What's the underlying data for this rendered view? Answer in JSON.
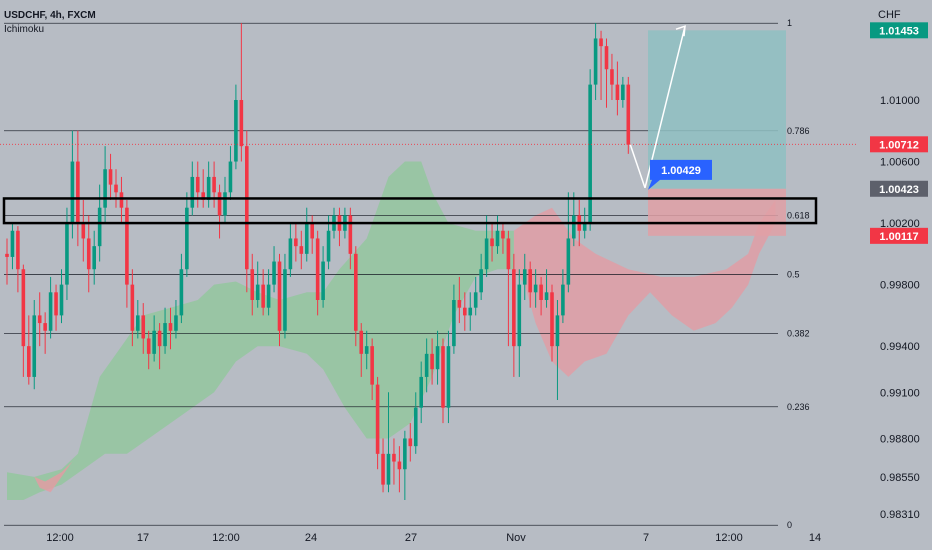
{
  "header": {
    "symbol_line": "USDCHF, 4h, FXCM",
    "indicator": "Ichimoku"
  },
  "colors": {
    "background": "#b7bcc4",
    "bull": "#089981",
    "bear": "#f23645",
    "cloud_bull": "#8fc89a",
    "cloud_bear": "#e59aa2",
    "target_zone": "#8fbfc2",
    "stop_zone": "#e0a0a6",
    "level_line": "#131722",
    "callout": "#2962ff"
  },
  "chart_data": {
    "type": "candlestick",
    "title": "USDCHF, 4h, FXCM",
    "indicator": "Ichimoku",
    "y_axis": {
      "currency": "CHF",
      "ticks": [
        "1.01000",
        "1.00600",
        "1.00200",
        "0.99800",
        "0.99400",
        "0.99100",
        "0.98800",
        "0.98550",
        "0.98310"
      ],
      "range": [
        0.9827,
        1.0165
      ]
    },
    "x_axis": {
      "ticks": [
        "12:00",
        "17",
        "12:00",
        "24",
        "27",
        "Nov",
        "7",
        "12:00",
        "14"
      ]
    },
    "fib_levels": [
      {
        "label": "1",
        "price": 1.01499
      },
      {
        "label": "0.786",
        "price": 1.008
      },
      {
        "label": "0.618",
        "price": 1.0025
      },
      {
        "label": "0.5",
        "price": 0.99866
      },
      {
        "label": "0.382",
        "price": 0.99483
      },
      {
        "label": "0.236",
        "price": 0.99006
      },
      {
        "label": "0",
        "price": 0.98236
      }
    ],
    "price_tags": [
      {
        "value": "1.01453",
        "price": 1.01453,
        "color": "#089981"
      },
      {
        "value": "1.00712",
        "price": 1.00712,
        "color": "#f23645"
      },
      {
        "value": "1.00423",
        "price": 1.00423,
        "color": "#5d606b"
      },
      {
        "value": "1.00117",
        "price": 1.00117,
        "color": "#f23645"
      }
    ],
    "callout": {
      "value": "1.00429",
      "price": 1.00429
    },
    "position": {
      "entry": 1.00423,
      "target": 1.01453,
      "stop": 1.00117
    },
    "support_zone": {
      "top": 1.0036,
      "bottom": 1.002
    },
    "current_price": 1.00712,
    "candles": [
      [
        1.0,
        0.9998,
        1.001,
        0.998
      ],
      [
        0.9998,
        1.0015,
        1.002,
        0.999
      ],
      [
        1.0015,
        0.999,
        1.0018,
        0.9975
      ],
      [
        0.999,
        0.994,
        0.9993,
        0.992
      ],
      [
        0.994,
        0.992,
        0.996,
        0.9915
      ],
      [
        0.992,
        0.996,
        0.997,
        0.9912
      ],
      [
        0.996,
        0.9955,
        0.9975,
        0.994
      ],
      [
        0.9955,
        0.995,
        0.9962,
        0.9935
      ],
      [
        0.995,
        0.9975,
        0.9985,
        0.9945
      ],
      [
        0.9975,
        0.996,
        0.998,
        0.995
      ],
      [
        0.996,
        0.998,
        0.999,
        0.9955
      ],
      [
        0.998,
        1.002,
        1.003,
        0.997
      ],
      [
        1.002,
        1.006,
        1.008,
        1.001
      ],
      [
        1.006,
        1.002,
        1.008,
        1.0005
      ],
      [
        1.002,
        1.001,
        1.0035,
        0.9995
      ],
      [
        1.001,
        0.999,
        1.0025,
        0.9975
      ],
      [
        0.999,
        1.0005,
        1.0015,
        0.998
      ],
      [
        1.0005,
        1.003,
        1.0045,
        0.9995
      ],
      [
        1.003,
        1.0055,
        1.007,
        1.002
      ],
      [
        1.0055,
        1.0045,
        1.0065,
        1.0035
      ],
      [
        1.0045,
        1.004,
        1.0055,
        1.003
      ],
      [
        1.004,
        1.003,
        1.005,
        1.002
      ],
      [
        1.003,
        0.998,
        1.0035,
        0.9965
      ],
      [
        0.998,
        0.995,
        0.999,
        0.994
      ],
      [
        0.995,
        0.996,
        0.997,
        0.9945
      ],
      [
        0.996,
        0.9945,
        0.9968,
        0.9935
      ],
      [
        0.9945,
        0.9935,
        0.995,
        0.9925
      ],
      [
        0.9935,
        0.995,
        0.996,
        0.993
      ],
      [
        0.995,
        0.994,
        0.9955,
        0.9925
      ],
      [
        0.994,
        0.9955,
        0.9965,
        0.9935
      ],
      [
        0.9955,
        0.995,
        0.9965,
        0.9938
      ],
      [
        0.995,
        0.996,
        0.997,
        0.9945
      ],
      [
        0.996,
        0.999,
        1.0,
        0.9955
      ],
      [
        0.999,
        1.003,
        1.004,
        0.9985
      ],
      [
        1.003,
        1.005,
        1.006,
        1.0025
      ],
      [
        1.005,
        1.004,
        1.006,
        1.003
      ],
      [
        1.004,
        1.0035,
        1.0055,
        1.003
      ],
      [
        1.0035,
        1.005,
        1.006,
        1.003
      ],
      [
        1.005,
        1.004,
        1.006,
        1.003
      ],
      [
        1.004,
        1.0025,
        1.0045,
        1.001
      ],
      [
        1.0025,
        1.004,
        1.005,
        1.002
      ],
      [
        1.004,
        1.006,
        1.007,
        1.0035
      ],
      [
        1.006,
        1.01,
        1.011,
        1.0055
      ],
      [
        1.01,
        1.007,
        1.015,
        1.006
      ],
      [
        1.007,
        0.999,
        1.008,
        0.9975
      ],
      [
        0.999,
        0.997,
        1.0,
        0.996
      ],
      [
        0.997,
        0.998,
        0.9995,
        0.9965
      ],
      [
        0.998,
        0.9965,
        0.999,
        0.996
      ],
      [
        0.9965,
        0.998,
        0.999,
        0.996
      ],
      [
        0.998,
        0.9995,
        1.0005,
        0.9975
      ],
      [
        0.9995,
        0.995,
        1.0,
        0.994
      ],
      [
        0.995,
        0.999,
        1.0,
        0.9945
      ],
      [
        0.999,
        1.001,
        1.002,
        0.9985
      ],
      [
        1.001,
        1.0005,
        1.002,
        0.9995
      ],
      [
        1.0005,
        1.0,
        1.0015,
        0.999
      ],
      [
        1.0,
        1.002,
        1.003,
        0.9995
      ],
      [
        1.002,
        1.001,
        1.0025,
        1.0
      ],
      [
        1.001,
        0.997,
        1.0015,
        0.996
      ],
      [
        0.997,
        0.9995,
        1.0005,
        0.9965
      ],
      [
        0.9995,
        1.0015,
        1.0025,
        0.999
      ],
      [
        1.0015,
        1.0025,
        1.003,
        1.001
      ],
      [
        1.0025,
        1.0015,
        1.003,
        1.0005
      ],
      [
        1.0015,
        1.0025,
        1.003,
        1.001
      ],
      [
        1.0025,
        1.0,
        1.003,
        0.999
      ],
      [
        1.0,
        0.995,
        1.0005,
        0.994
      ],
      [
        0.995,
        0.9935,
        0.9955,
        0.992
      ],
      [
        0.9935,
        0.994,
        0.995,
        0.9925
      ],
      [
        0.994,
        0.9915,
        0.9945,
        0.9905
      ],
      [
        0.9915,
        0.987,
        0.992,
        0.986
      ],
      [
        0.987,
        0.985,
        0.988,
        0.9845
      ],
      [
        0.985,
        0.987,
        0.991,
        0.9845
      ],
      [
        0.987,
        0.9865,
        0.988,
        0.985
      ],
      [
        0.9865,
        0.986,
        0.9875,
        0.9845
      ],
      [
        0.986,
        0.988,
        0.9885,
        0.984
      ],
      [
        0.988,
        0.9875,
        0.989,
        0.9865
      ],
      [
        0.9875,
        0.99,
        0.991,
        0.987
      ],
      [
        0.99,
        0.992,
        0.993,
        0.989
      ],
      [
        0.992,
        0.9935,
        0.9945,
        0.991
      ],
      [
        0.9935,
        0.9925,
        0.9945,
        0.9915
      ],
      [
        0.9925,
        0.994,
        0.995,
        0.9915
      ],
      [
        0.994,
        0.99,
        0.9945,
        0.989
      ],
      [
        0.99,
        0.994,
        0.995,
        0.989
      ],
      [
        0.994,
        0.997,
        0.998,
        0.9935
      ],
      [
        0.997,
        0.9965,
        0.9985,
        0.9955
      ],
      [
        0.9965,
        0.996,
        0.9975,
        0.995
      ],
      [
        0.996,
        0.9965,
        0.9975,
        0.995
      ],
      [
        0.9965,
        0.9975,
        0.9985,
        0.996
      ],
      [
        0.9975,
        0.999,
        1.0,
        0.997
      ],
      [
        0.999,
        1.001,
        1.0025,
        0.9985
      ],
      [
        1.001,
        1.0005,
        1.002,
        0.9995
      ],
      [
        1.0005,
        1.0015,
        1.0025,
        1.0
      ],
      [
        1.0015,
        1.001,
        1.002,
        1.0
      ],
      [
        1.001,
        0.999,
        1.0015,
        0.994
      ],
      [
        0.999,
        0.994,
        1.0,
        0.992
      ],
      [
        0.994,
        0.998,
        0.999,
        0.992
      ],
      [
        0.998,
        0.999,
        1.0,
        0.997
      ],
      [
        0.999,
        0.9975,
        0.9995,
        0.9965
      ],
      [
        0.9975,
        0.998,
        0.999,
        0.9965
      ],
      [
        0.998,
        0.997,
        0.9985,
        0.996
      ],
      [
        0.997,
        0.9975,
        0.999,
        0.9965
      ],
      [
        0.9975,
        0.994,
        0.998,
        0.993
      ],
      [
        0.994,
        0.996,
        0.997,
        0.9905
      ],
      [
        0.996,
        0.998,
        0.999,
        0.9955
      ],
      [
        0.998,
        1.001,
        1.004,
        0.9975
      ],
      [
        1.001,
        1.0025,
        1.004,
        1.0005
      ],
      [
        1.0025,
        1.0015,
        1.0035,
        1.0005
      ],
      [
        1.0015,
        1.002,
        1.003,
        1.001
      ],
      [
        1.002,
        1.011,
        1.012,
        1.0015
      ],
      [
        1.011,
        1.014,
        1.015,
        1.01
      ],
      [
        1.014,
        1.0135,
        1.0145,
        1.01
      ],
      [
        1.0135,
        1.012,
        1.014,
        1.0095
      ],
      [
        1.012,
        1.011,
        1.013,
        1.01
      ],
      [
        1.011,
        1.01,
        1.0125,
        1.009
      ],
      [
        1.01,
        1.011,
        1.0115,
        1.0095
      ],
      [
        1.011,
        1.0071,
        1.0115,
        1.0065
      ]
    ],
    "cloud_bull": [
      [
        0,
        0.9858
      ],
      [
        5,
        0.9855
      ],
      [
        10,
        0.986
      ],
      [
        13,
        0.987
      ],
      [
        17,
        0.992
      ],
      [
        21,
        0.994
      ],
      [
        25,
        0.996
      ],
      [
        30,
        0.9965
      ],
      [
        35,
        0.997
      ],
      [
        38,
        0.998
      ],
      [
        42,
        0.9982
      ],
      [
        46,
        0.9975
      ],
      [
        50,
        0.997
      ],
      [
        55,
        0.9975
      ],
      [
        58,
        0.9975
      ],
      [
        61,
        0.999
      ],
      [
        66,
        1.001
      ],
      [
        70,
        1.005
      ],
      [
        73,
        1.006
      ],
      [
        76,
        1.006
      ],
      [
        78,
        1.004
      ],
      [
        81,
        1.002
      ],
      [
        86,
        1.0015
      ],
      [
        90,
        1.0015
      ],
      [
        93,
        1.0015
      ],
      [
        93,
        0.999
      ],
      [
        90,
        0.999
      ],
      [
        86,
        0.9985
      ],
      [
        82,
        0.996
      ],
      [
        78,
        0.992
      ],
      [
        74,
        0.989
      ],
      [
        70,
        0.988
      ],
      [
        66,
        0.988
      ],
      [
        62,
        0.99
      ],
      [
        58,
        0.9925
      ],
      [
        55,
        0.9935
      ],
      [
        50,
        0.994
      ],
      [
        46,
        0.994
      ],
      [
        42,
        0.993
      ],
      [
        38,
        0.991
      ],
      [
        34,
        0.99
      ],
      [
        30,
        0.989
      ],
      [
        26,
        0.988
      ],
      [
        22,
        0.987
      ],
      [
        18,
        0.987
      ],
      [
        14,
        0.986
      ],
      [
        10,
        0.985
      ],
      [
        6,
        0.9845
      ],
      [
        3,
        0.984
      ],
      [
        0,
        0.984
      ]
    ],
    "cloud_bear": [
      [
        5,
        0.9855
      ],
      [
        7,
        0.9852
      ],
      [
        10,
        0.9858
      ],
      [
        12,
        0.9865
      ],
      [
        8,
        0.9845
      ],
      [
        6,
        0.9848
      ]
    ],
    "cloud_bear_right": [
      [
        93,
        1.0015
      ],
      [
        97,
        1.0025
      ],
      [
        100,
        1.003
      ],
      [
        104,
        1.001
      ],
      [
        108,
        1.0
      ],
      [
        114,
        0.999
      ],
      [
        120,
        0.9985
      ],
      [
        126,
        0.9985
      ],
      [
        132,
        0.999
      ],
      [
        136,
        1.0
      ],
      [
        138,
        1.002
      ],
      [
        141,
        1.0035
      ],
      [
        141,
        1.002
      ],
      [
        138,
        1.0
      ],
      [
        136,
        0.998
      ],
      [
        133,
        0.9965
      ],
      [
        130,
        0.9955
      ],
      [
        126,
        0.995
      ],
      [
        122,
        0.996
      ],
      [
        118,
        0.9975
      ],
      [
        114,
        0.996
      ],
      [
        110,
        0.9935
      ],
      [
        106,
        0.993
      ],
      [
        103,
        0.992
      ],
      [
        100,
        0.993
      ],
      [
        97,
        0.9955
      ],
      [
        95,
        0.998
      ],
      [
        93,
        0.999
      ]
    ]
  }
}
